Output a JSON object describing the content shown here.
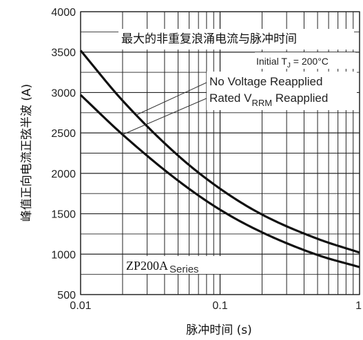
{
  "chart_data": {
    "type": "line",
    "title": "最大的非重复浪涌电流与脉冲时间",
    "xlabel": "脉冲时间 (s)",
    "ylabel": "峰值正向电流正弦半波 (A)",
    "x_scale": "log",
    "xlim": [
      0.01,
      1
    ],
    "ylim": [
      500,
      4000
    ],
    "grid": true,
    "x_ticks": [
      0.01,
      0.1,
      1
    ],
    "x_tick_labels": [
      "0.01",
      "0.1",
      "1"
    ],
    "y_ticks": [
      500,
      1000,
      1500,
      2000,
      2500,
      3000,
      3500,
      4000
    ],
    "y_tick_labels": [
      "500",
      "1000",
      "1500",
      "2000",
      "2500",
      "3000",
      "3500",
      "4000"
    ],
    "condition": {
      "prefix": "Initial T",
      "subscript": "J",
      "suffix": " = 200°C"
    },
    "series": [
      {
        "name": "No Voltage Reapplied",
        "x": [
          0.01,
          0.02,
          0.05,
          0.1,
          0.2,
          0.5,
          1
        ],
        "values": [
          3520,
          2900,
          2220,
          1810,
          1490,
          1190,
          1020
        ]
      },
      {
        "name_prefix": "Rated V",
        "name_sub": "RRM",
        "name_suffix": " Reapplied",
        "x": [
          0.01,
          0.02,
          0.05,
          0.1,
          0.2,
          0.5,
          1
        ],
        "values": [
          2970,
          2480,
          1910,
          1550,
          1270,
          990,
          840
        ]
      }
    ],
    "annotation": {
      "part": "ZP200A",
      "part_suffix": "Series"
    }
  }
}
